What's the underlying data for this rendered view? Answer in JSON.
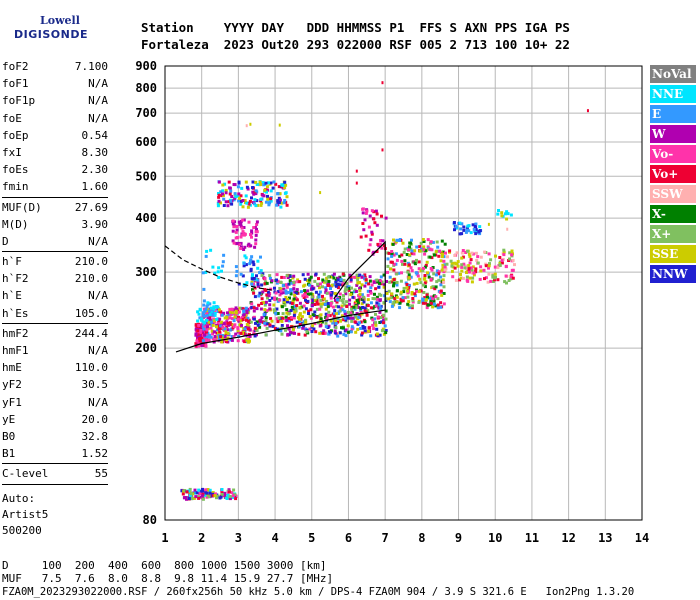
{
  "logo": {
    "line1": "Lowell",
    "line2": "DIGISONDE"
  },
  "header": {
    "line1": "Station    YYYY DAY   DDD HHMMSS P1  FFS S AXN PPS IGA PS",
    "line2": "Fortaleza  2023 Out20 293 022000 RSF 005 2 713 100 10+ 22"
  },
  "params": {
    "group1": [
      {
        "label": "foF2",
        "value": "7.100"
      },
      {
        "label": "foF1",
        "value": "N/A"
      },
      {
        "label": "foF1p",
        "value": "N/A"
      },
      {
        "label": "foE",
        "value": "N/A"
      },
      {
        "label": "foEp",
        "value": "0.54"
      },
      {
        "label": "fxI",
        "value": "8.30"
      },
      {
        "label": "foEs",
        "value": "2.30"
      },
      {
        "label": "fmin",
        "value": "1.60"
      }
    ],
    "group2": [
      {
        "label": "MUF(D)",
        "value": "27.69"
      },
      {
        "label": "M(D)",
        "value": "3.90"
      },
      {
        "label": "D",
        "value": "N/A"
      }
    ],
    "group3": [
      {
        "label": "h`F",
        "value": "210.0"
      },
      {
        "label": "h`F2",
        "value": "210.0"
      },
      {
        "label": "h`E",
        "value": "N/A"
      },
      {
        "label": "h`Es",
        "value": "105.0"
      }
    ],
    "group4": [
      {
        "label": "hmF2",
        "value": "244.4"
      },
      {
        "label": "hmF1",
        "value": "N/A"
      },
      {
        "label": "hmE",
        "value": "110.0"
      },
      {
        "label": "yF2",
        "value": "30.5"
      },
      {
        "label": "yF1",
        "value": "N/A"
      },
      {
        "label": "yE",
        "value": "20.0"
      },
      {
        "label": "B0",
        "value": "32.8"
      },
      {
        "label": "B1",
        "value": "1.52"
      }
    ],
    "group5": [
      {
        "label": "C-level",
        "value": "55"
      }
    ],
    "auto_lines": [
      "Auto:",
      "Artist5",
      "500200"
    ]
  },
  "legend": [
    {
      "label": "NoVal",
      "bg": "#808080",
      "fg": "#ffffff"
    },
    {
      "label": "NNE",
      "bg": "#00e5ff",
      "fg": "#ffffff"
    },
    {
      "label": "E",
      "bg": "#3399ff",
      "fg": "#ffffff"
    },
    {
      "label": "W",
      "bg": "#b000b0",
      "fg": "#ffffff"
    },
    {
      "label": "Vo-",
      "bg": "#ff33aa",
      "fg": "#ffffff"
    },
    {
      "label": "Vo+",
      "bg": "#ee0033",
      "fg": "#ffffff"
    },
    {
      "label": "SSW",
      "bg": "#ffb0b0",
      "fg": "#ffffff"
    },
    {
      "label": "X-",
      "bg": "#008000",
      "fg": "#ffffff"
    },
    {
      "label": "X+",
      "bg": "#80c060",
      "fg": "#ffffff"
    },
    {
      "label": "SSE",
      "bg": "#cccc00",
      "fg": "#ffffff"
    },
    {
      "label": "NNW",
      "bg": "#2020d0",
      "fg": "#ffffff"
    }
  ],
  "footer": {
    "line1": "D     100  200  400  600  800 1000 1500 3000 [km]",
    "line2": "MUF   7.5  7.6  8.0  8.8  9.8 11.4 15.9 27.7 [MHz]",
    "line3": "FZA0M_2023293022000.RSF / 260fx256h 50 kHz 5.0 km / DPS-4 FZA0M 904 / 3.9 S 321.6 E   Ion2Png 1.3.20"
  },
  "chart_data": {
    "type": "scatter",
    "title": "",
    "xlabel": "",
    "ylabel": "",
    "xlim": [
      1,
      14
    ],
    "ylim": [
      80,
      900
    ],
    "y_scale": "log",
    "x_ticks": [
      1,
      2,
      3,
      4,
      5,
      6,
      7,
      8,
      9,
      10,
      11,
      12,
      13,
      14
    ],
    "y_ticks": [
      80,
      200,
      300,
      400,
      500,
      600,
      700,
      800,
      900
    ],
    "grid": true,
    "trace_solid": {
      "x": [
        1.3,
        2.0,
        3.0,
        4.0,
        5.0,
        6.0,
        7.0,
        7.0,
        6.0,
        5.6
      ],
      "y": [
        196,
        205,
        212,
        220,
        228,
        238,
        245,
        352,
        290,
        260
      ]
    },
    "trace_dashed": {
      "x": [
        1.0,
        1.5,
        2.0,
        2.5,
        3.0,
        3.5,
        4.0
      ],
      "y": [
        345,
        320,
        305,
        292,
        283,
        276,
        272
      ]
    },
    "clusters": [
      {
        "x": [
          1.8,
          2.1
        ],
        "y": [
          203,
          230
        ],
        "n": 150,
        "colors": [
          "#ee0033",
          "#ff33aa",
          "#b000b0"
        ]
      },
      {
        "x": [
          2.0,
          3.3
        ],
        "y": [
          208,
          250
        ],
        "n": 300,
        "colors": [
          "#ee0033",
          "#ff33aa",
          "#b000b0",
          "#cccc00",
          "#3399ff"
        ]
      },
      {
        "x": [
          3.3,
          7.0
        ],
        "y": [
          215,
          300
        ],
        "n": 800,
        "colors": [
          "#ee0033",
          "#ff33aa",
          "#b000b0",
          "#cccc00",
          "#3399ff",
          "#008000",
          "#80c060",
          "#2020d0"
        ]
      },
      {
        "x": [
          7.0,
          8.6
        ],
        "y": [
          250,
          360
        ],
        "n": 300,
        "colors": [
          "#ee0033",
          "#cccc00",
          "#ff33aa",
          "#80c060",
          "#008000",
          "#3399ff"
        ]
      },
      {
        "x": [
          8.5,
          10.5
        ],
        "y": [
          285,
          340
        ],
        "n": 160,
        "colors": [
          "#ffb0b0",
          "#cccc00",
          "#ff33aa",
          "#ee0033",
          "#80c060"
        ]
      },
      {
        "x": [
          1.8,
          2.4
        ],
        "y": [
          230,
          255
        ],
        "n": 40,
        "colors": [
          "#00e5ff",
          "#3399ff"
        ]
      },
      {
        "x": [
          2.4,
          4.3
        ],
        "y": [
          425,
          490
        ],
        "n": 160,
        "colors": [
          "#00e5ff",
          "#3399ff",
          "#cccc00",
          "#b000b0",
          "#ee0033",
          "#2020d0"
        ]
      },
      {
        "x": [
          2.8,
          3.5
        ],
        "y": [
          340,
          400
        ],
        "n": 60,
        "colors": [
          "#b000b0",
          "#ff33aa"
        ]
      },
      {
        "x": [
          2.9,
          3.6
        ],
        "y": [
          280,
          330
        ],
        "n": 40,
        "colors": [
          "#2020d0",
          "#3399ff",
          "#00e5ff"
        ]
      },
      {
        "x": [
          2.0,
          2.6
        ],
        "y": [
          255,
          340
        ],
        "n": 20,
        "colors": [
          "#00e5ff",
          "#3399ff"
        ]
      },
      {
        "x": [
          1.4,
          2.9
        ],
        "y": [
          90,
          95
        ],
        "n": 110,
        "colors": [
          "#2020d0",
          "#ee0033",
          "#ff33aa",
          "#00e5ff",
          "#80c060",
          "#cccc00",
          "#b000b0"
        ]
      },
      {
        "x": [
          8.8,
          9.6
        ],
        "y": [
          370,
          395
        ],
        "n": 40,
        "colors": [
          "#00e5ff",
          "#3399ff",
          "#2020d0"
        ]
      },
      {
        "x": [
          6.3,
          7.0
        ],
        "y": [
          330,
          430
        ],
        "n": 40,
        "colors": [
          "#ee0033",
          "#ff33aa",
          "#b000b0"
        ]
      },
      {
        "x": [
          10.0,
          10.4
        ],
        "y": [
          400,
          420
        ],
        "n": 10,
        "colors": [
          "#cccc00",
          "#00e5ff"
        ]
      }
    ],
    "isolated_points": [
      {
        "x": 6.9,
        "y": 830,
        "color": "#ee0033"
      },
      {
        "x": 12.5,
        "y": 715,
        "color": "#ee0033"
      },
      {
        "x": 6.9,
        "y": 580,
        "color": "#ee0033"
      },
      {
        "x": 3.3,
        "y": 665,
        "color": "#cccc00"
      },
      {
        "x": 3.2,
        "y": 660,
        "color": "#ffb0b0"
      },
      {
        "x": 4.1,
        "y": 662,
        "color": "#cccc00"
      },
      {
        "x": 6.2,
        "y": 518,
        "color": "#ee0033"
      },
      {
        "x": 6.2,
        "y": 486,
        "color": "#ee0033"
      },
      {
        "x": 5.2,
        "y": 462,
        "color": "#cccc00"
      },
      {
        "x": 9.8,
        "y": 390,
        "color": "#cccc00"
      },
      {
        "x": 10.3,
        "y": 380,
        "color": "#ffb0b0"
      }
    ]
  }
}
